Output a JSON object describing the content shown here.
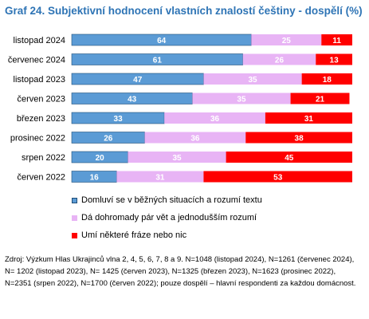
{
  "chart_data": {
    "type": "bar",
    "stacked": true,
    "orientation": "horizontal",
    "title": "Graf 24. Subjektivní hodnocení vlastních znalostí češtiny - dospělí (%)",
    "categories": [
      "listopad 2024",
      "červenec 2024",
      "listopad 2023",
      "červen 2023",
      "březen 2023",
      "prosinec 2022",
      "srpen 2022",
      "červen 2022"
    ],
    "series": [
      {
        "name": "Domluví se v běžných situacích a rozumí textu",
        "color": "#5b9bd5",
        "values": [
          64,
          61,
          47,
          43,
          33,
          26,
          20,
          16
        ]
      },
      {
        "name": "Dá dohromady pár vět a jednodušším rozumí",
        "color": "#e8b4f5",
        "values": [
          25,
          26,
          35,
          35,
          36,
          36,
          35,
          31
        ]
      },
      {
        "name": "Umí některé fráze nebo nic",
        "color": "#ff0000",
        "values": [
          11,
          13,
          18,
          21,
          31,
          38,
          45,
          53
        ]
      }
    ],
    "xlim": [
      0,
      100
    ],
    "grid": false,
    "legend_position": "bottom"
  },
  "source_note": "Zdroj: Výzkum Hlas Ukrajinců vlna 2, 4, 5, 6, 7, 8 a 9. N=1048 (listopad 2024), N=1261 (červenec 2024), N= 1202 (listopad 2023), N= 1425 (červen 2023), N=1325 (březen 2023), N=1623 (prosinec 2022), N=2351 (srpen 2022), N=1700 (červen 2022); pouze dospělí – hlavní respondenti za každou domácnost."
}
